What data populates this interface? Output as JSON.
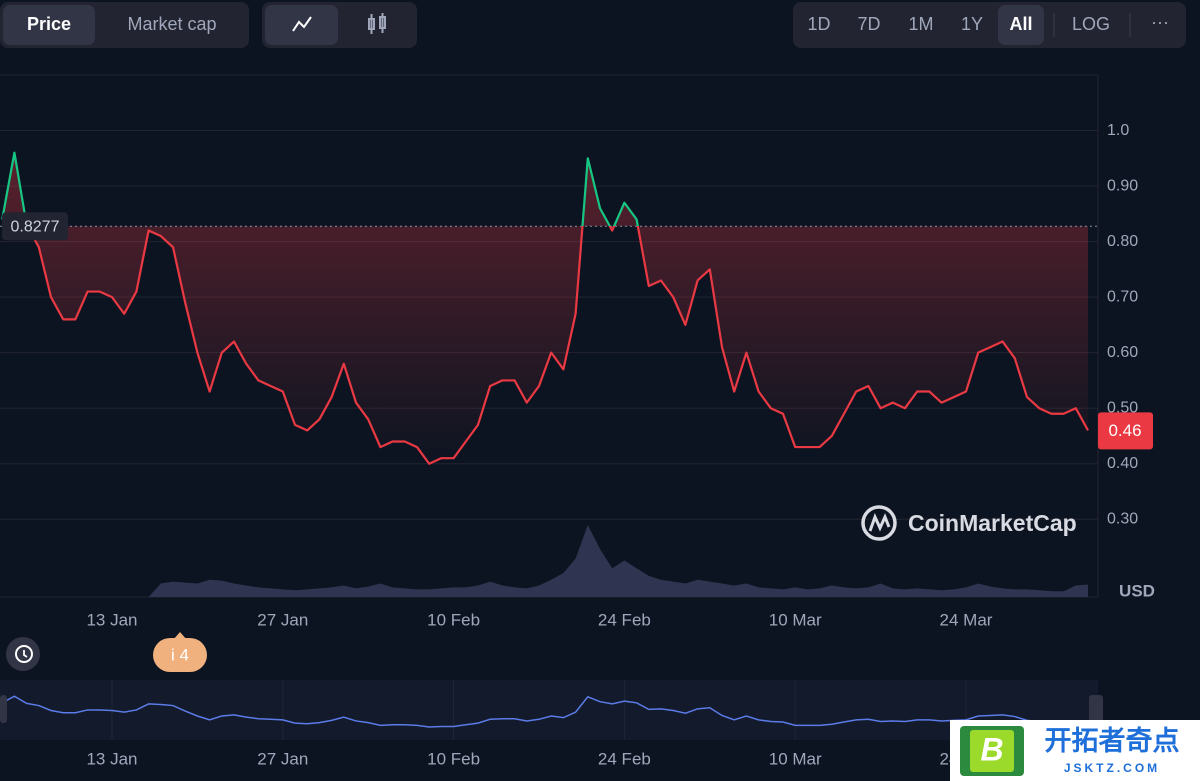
{
  "ui": {
    "toggle": [
      "Price",
      "Market cap"
    ],
    "ranges": [
      "1D",
      "7D",
      "1M",
      "1Y",
      "All"
    ],
    "log": "LOG",
    "more": "···",
    "currency": "USD",
    "brand": "CoinMarketCap",
    "event_badge": "i 4",
    "watermark": {
      "title": "开拓者奇点",
      "url": "JSKTZ.COM",
      "logo": "B"
    }
  },
  "chart_data": {
    "type": "line",
    "color_up": "#16c784",
    "color_down": "#ea3943",
    "categories": [
      null,
      null,
      null,
      null,
      null,
      null,
      null,
      null,
      null,
      "13 Jan",
      null,
      null,
      null,
      null,
      null,
      null,
      null,
      null,
      null,
      null,
      null,
      null,
      null,
      "27 Jan",
      null,
      null,
      null,
      null,
      null,
      null,
      null,
      null,
      null,
      null,
      null,
      null,
      null,
      "10 Feb",
      null,
      null,
      null,
      null,
      null,
      null,
      null,
      null,
      null,
      null,
      null,
      null,
      null,
      "24 Feb",
      null,
      null,
      null,
      null,
      null,
      null,
      null,
      null,
      null,
      null,
      null,
      null,
      null,
      "10 Mar",
      null,
      null,
      null,
      null,
      null,
      null,
      null,
      null,
      null,
      null,
      null,
      null,
      null,
      "24 Mar",
      null,
      null,
      null,
      null,
      null,
      null,
      null,
      null,
      null,
      null
    ],
    "values": [
      0.84,
      0.96,
      0.83,
      0.79,
      0.7,
      0.66,
      0.66,
      0.71,
      0.71,
      0.7,
      0.67,
      0.71,
      0.82,
      0.81,
      0.79,
      0.69,
      0.6,
      0.53,
      0.6,
      0.62,
      0.58,
      0.55,
      0.54,
      0.53,
      0.47,
      0.46,
      0.48,
      0.52,
      0.58,
      0.51,
      0.48,
      0.43,
      0.44,
      0.44,
      0.43,
      0.4,
      0.41,
      0.41,
      0.44,
      0.47,
      0.54,
      0.55,
      0.55,
      0.51,
      0.54,
      0.6,
      0.57,
      0.67,
      0.95,
      0.86,
      0.82,
      0.87,
      0.84,
      0.72,
      0.73,
      0.7,
      0.65,
      0.73,
      0.75,
      0.61,
      0.53,
      0.6,
      0.53,
      0.5,
      0.49,
      0.43,
      0.43,
      0.43,
      0.45,
      0.49,
      0.53,
      0.54,
      0.5,
      0.51,
      0.5,
      0.53,
      0.53,
      0.51,
      0.52,
      0.53,
      0.6,
      0.61,
      0.62,
      0.59,
      0.52,
      0.5,
      0.49,
      0.49,
      0.5,
      0.46
    ],
    "volume": [
      0,
      0,
      0,
      0,
      0,
      0,
      0,
      0,
      0,
      0,
      0,
      0,
      0,
      14,
      16,
      15,
      14,
      18,
      17,
      14,
      12,
      10,
      9,
      8,
      7,
      8,
      9,
      10,
      12,
      9,
      11,
      14,
      10,
      9,
      8,
      8,
      9,
      10,
      10,
      12,
      16,
      12,
      10,
      9,
      12,
      18,
      25,
      40,
      75,
      50,
      30,
      38,
      30,
      22,
      18,
      16,
      14,
      18,
      16,
      14,
      12,
      14,
      10,
      9,
      8,
      10,
      8,
      9,
      12,
      10,
      9,
      10,
      14,
      9,
      8,
      9,
      8,
      7,
      8,
      10,
      14,
      11,
      9,
      8,
      8,
      7,
      6,
      6,
      12,
      13
    ],
    "reference": 0.8277,
    "ylim": [
      0.16,
      1.1
    ],
    "yticks": [
      {
        "value": 0.3,
        "label": "0.30"
      },
      {
        "value": 0.4,
        "label": "0.40"
      },
      {
        "value": 0.5,
        "label": "0.50"
      },
      {
        "value": 0.6,
        "label": "0.60"
      },
      {
        "value": 0.7,
        "label": "0.70"
      },
      {
        "value": 0.8,
        "label": "0.80"
      },
      {
        "value": 0.9,
        "label": "0.90"
      },
      {
        "value": 1.0,
        "label": "1.0"
      }
    ],
    "grid": true
  }
}
